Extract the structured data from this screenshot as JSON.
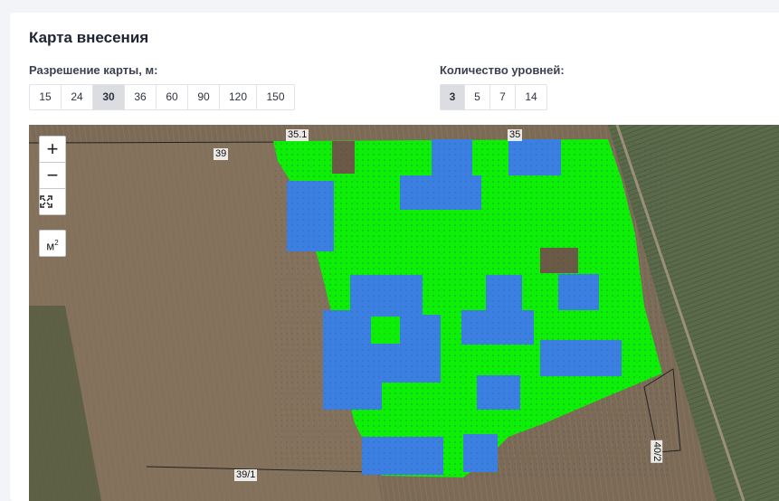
{
  "header": {
    "title": "Карта внесения"
  },
  "resolution": {
    "label": "Разрешение карты, м:",
    "options": [
      "15",
      "24",
      "30",
      "36",
      "60",
      "90",
      "120",
      "150"
    ],
    "selected": "30"
  },
  "levels": {
    "label": "Количество уровней:",
    "options": [
      "3",
      "5",
      "7",
      "14"
    ],
    "selected": "3"
  },
  "map": {
    "controls": {
      "zoom_in": "+",
      "zoom_out": "−",
      "fit": "⛶",
      "unit": "м",
      "unit_power": "2"
    },
    "field_labels": {
      "top_left": "35.1",
      "top_right": "35",
      "left_field": "39",
      "bottom_left": "39/1",
      "bottom_right": "40/2"
    },
    "colors": {
      "level_high": "#0eef08",
      "level_low": "#3b7fe0",
      "soil": "#7d6a55"
    }
  }
}
